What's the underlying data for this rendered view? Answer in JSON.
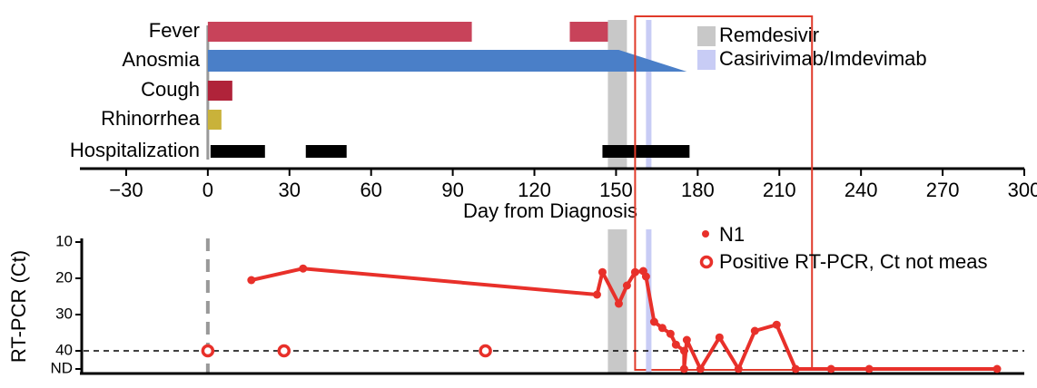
{
  "chart_data": [
    {
      "type": "timeline",
      "xlabel": "Day from Diagnosis",
      "xlim": [
        -47,
        300
      ],
      "xticks": [
        {
          "value": -30,
          "label": "−30"
        },
        0,
        30,
        60,
        90,
        120,
        150,
        180,
        210,
        240,
        270,
        300
      ],
      "rows": [
        {
          "name": "Fever",
          "color": "#c8435a",
          "intervals": [
            [
              0,
              97
            ],
            [
              133,
              147
            ]
          ]
        },
        {
          "name": "Anosmia",
          "color": "#4a7fc8",
          "shape": "arrow",
          "intervals": [
            [
              0,
              176
            ]
          ]
        },
        {
          "name": "Cough",
          "color": "#b0233a",
          "intervals": [
            [
              0,
              9
            ]
          ]
        },
        {
          "name": "Rhinorrhea",
          "color": "#c9b23a",
          "intervals": [
            [
              0,
              5
            ]
          ]
        },
        {
          "name": "Hospitalization",
          "color": "#000000",
          "intervals": [
            [
              1,
              21
            ],
            [
              36,
              51
            ],
            [
              145,
              177
            ]
          ]
        }
      ],
      "shaded": [
        {
          "name": "Remdesivir",
          "color": "#c8c8c8",
          "range": [
            147,
            154
          ]
        },
        {
          "name": "Casirivimab/Imdevimab",
          "color": "#c8ccf5",
          "range": [
            161,
            163
          ]
        }
      ],
      "highlight": [
        157,
        222
      ],
      "highlight_color": "#e03a2a"
    },
    {
      "type": "line",
      "ylabel": "RT-PCR (Ct)",
      "xlim": [
        -47,
        300
      ],
      "ylim": [
        46,
        9
      ],
      "yticks": [
        10,
        20,
        30,
        40,
        {
          "value": 45,
          "label": "ND"
        }
      ],
      "threshold": 40,
      "vline": 0,
      "series": [
        {
          "name": "N1",
          "color": "#e8302a",
          "marker": "dot",
          "x": [
            16,
            35,
            143,
            145,
            151,
            154,
            157,
            160,
            161,
            164,
            167,
            170,
            172,
            175,
            175,
            176,
            181,
            188,
            195,
            201,
            209,
            216,
            229,
            243,
            290
          ],
          "values": [
            20.5,
            17.3,
            24.5,
            18.3,
            27,
            22,
            18.3,
            18,
            19.5,
            32,
            33.7,
            35.3,
            38.3,
            40,
            45,
            37,
            45,
            36.3,
            45,
            34.5,
            32.8,
            45,
            45,
            45,
            45
          ]
        },
        {
          "name": "Positive RT-PCR, Ct not meas",
          "color": "#e8302a",
          "marker": "open",
          "x": [
            0,
            28,
            102
          ],
          "values": [
            40,
            40,
            40
          ]
        }
      ]
    }
  ]
}
